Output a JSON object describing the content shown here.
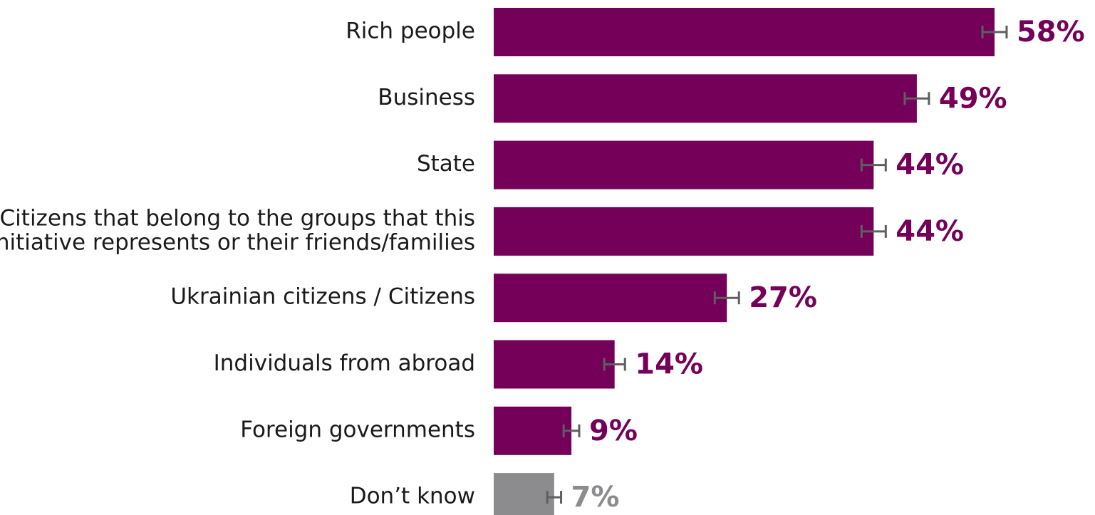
{
  "chart_data": {
    "type": "bar",
    "orientation": "horizontal",
    "categories": [
      [
        "Rich people"
      ],
      [
        "Business"
      ],
      [
        "State"
      ],
      [
        "Citizens that belong to the groups that this",
        "initiative represents or their friends/families"
      ],
      [
        "Ukrainian citizens / Citizens"
      ],
      [
        "Individuals from abroad"
      ],
      [
        "Foreign governments"
      ],
      [
        "Don’t know"
      ]
    ],
    "values": [
      58,
      49,
      44,
      44,
      27,
      14,
      9,
      7
    ],
    "value_labels": [
      "58%",
      "49%",
      "44%",
      "44%",
      "27%",
      "14%",
      "9%",
      "7%"
    ],
    "error_margin": [
      1.4,
      1.4,
      1.4,
      1.4,
      1.4,
      1.2,
      0.9,
      0.8
    ],
    "bar_colors": [
      "#74005a",
      "#74005a",
      "#74005a",
      "#74005a",
      "#74005a",
      "#74005a",
      "#74005a",
      "#8c8c8e"
    ],
    "label_colors": [
      "#74005a",
      "#74005a",
      "#74005a",
      "#74005a",
      "#74005a",
      "#74005a",
      "#74005a",
      "#8c8c8e"
    ],
    "error_bar_color": "#5f5f5f",
    "xlim": [
      0,
      58
    ],
    "grid": false,
    "legend": "none",
    "title": "",
    "xlabel": "",
    "ylabel": ""
  }
}
